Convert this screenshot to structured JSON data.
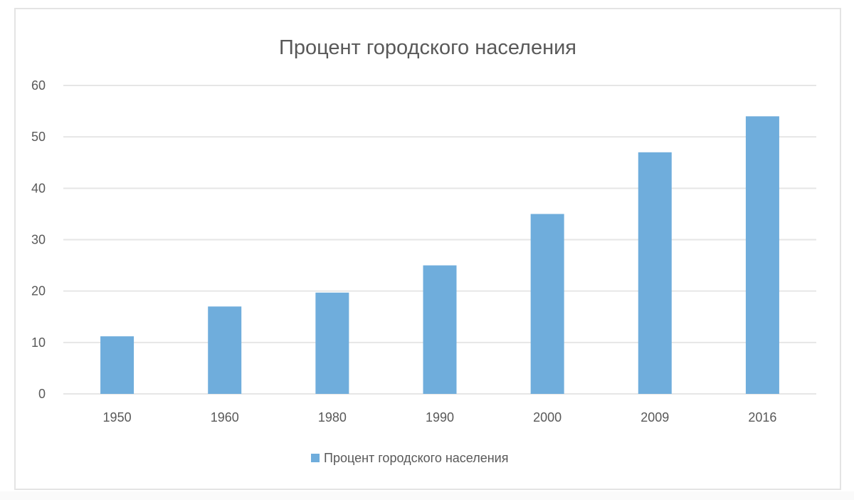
{
  "chart_data": {
    "type": "bar",
    "title": "Процент городского населения",
    "xlabel": "",
    "ylabel": "",
    "categories": [
      "1950",
      "1960",
      "1980",
      "1990",
      "2000",
      "2009",
      "2016"
    ],
    "series": [
      {
        "name": "Процент городского населения",
        "values": [
          11.2,
          17,
          19.7,
          25,
          35,
          47,
          54
        ],
        "color": "#6FADDC"
      }
    ],
    "ylim": [
      0,
      60
    ],
    "yticks": [
      0,
      10,
      20,
      30,
      40,
      50,
      60
    ],
    "grid": true,
    "legend_position": "bottom"
  },
  "colors": {
    "bar": "#6FADDC",
    "gridline": "#E6E6E6",
    "text": "#595959",
    "frame_border": "#E4E4E4"
  }
}
